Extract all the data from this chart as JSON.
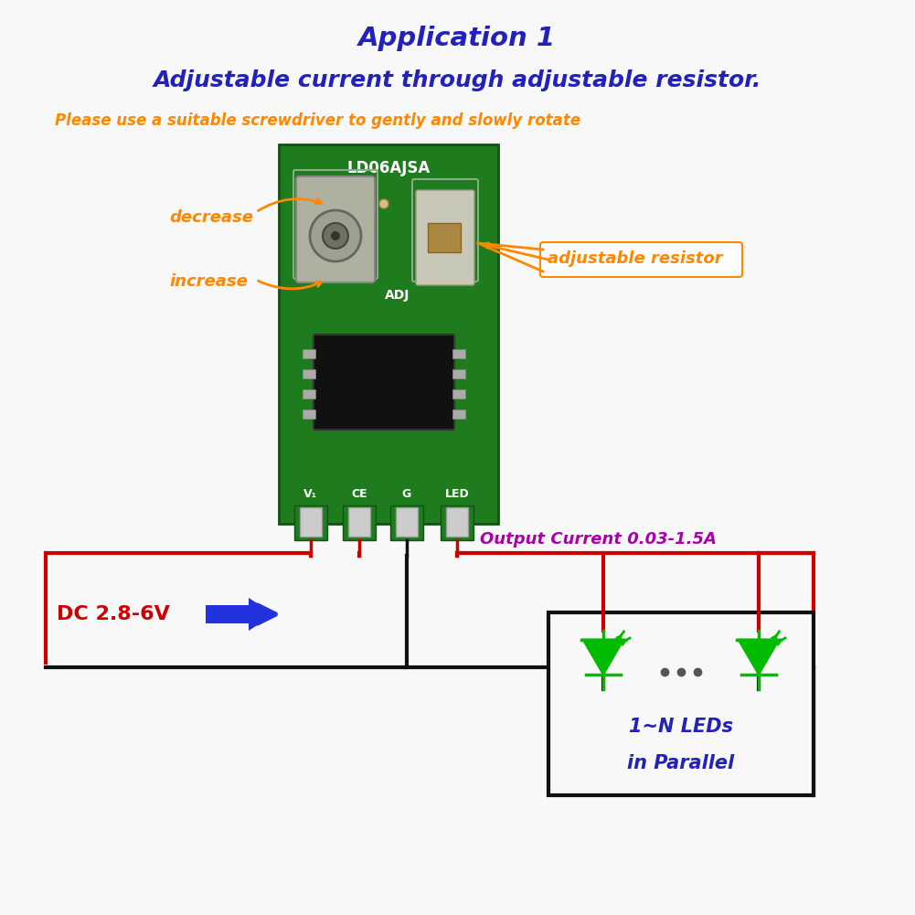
{
  "title1": "Application 1",
  "title2": "Adjustable current through adjustable resistor.",
  "title1_color": "#2222BB",
  "title2_color": "#2222BB",
  "orange_note": "Please use a suitable screwdriver to gently and slowly rotate",
  "orange_color": "#FF8800",
  "decrease_label": "decrease",
  "increase_label": "increase",
  "adj_resistor_label": "adjustable resistor",
  "output_current_label": "Output Current 0.03-1.5A",
  "output_current_color": "#AA00AA",
  "dc_label": "DC 2.8-6V",
  "dc_color": "#CC0000",
  "led_label_line1": "1~N LEDs",
  "led_label_line2": "in Parallel",
  "led_label_color": "#2222BB",
  "wire_red": "#CC0000",
  "wire_black": "#111111",
  "board_green": "#1E7B1E",
  "board_dark": "#155015",
  "bg_color": "#F8F8F8",
  "arrow_blue": "#2233DD",
  "led_green": "#00BB00",
  "ic_black": "#111111",
  "term_gray": "#CCCCCC",
  "pot_gray": "#999999"
}
